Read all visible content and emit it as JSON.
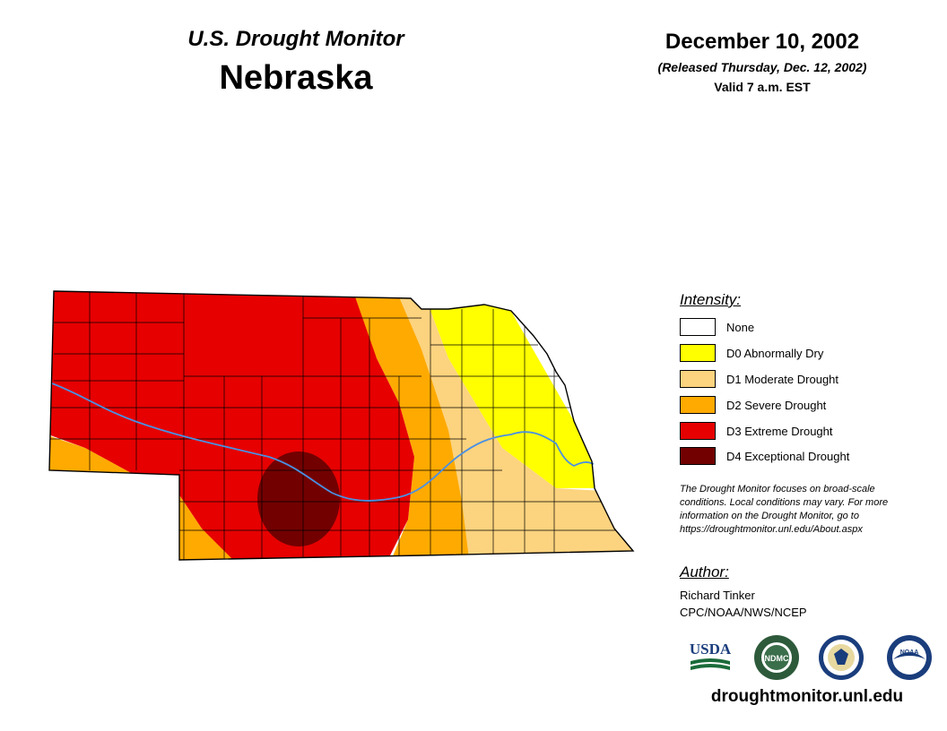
{
  "header": {
    "subtitle": "U.S. Drought Monitor",
    "state": "Nebraska",
    "date": "December 10, 2002",
    "released": "(Released Thursday, Dec. 12, 2002)",
    "valid": "Valid 7 a.m. EST"
  },
  "legend": {
    "title": "Intensity:",
    "items": [
      {
        "label": "None",
        "color": "#ffffff"
      },
      {
        "label": "D0 Abnormally Dry",
        "color": "#ffff00"
      },
      {
        "label": "D1 Moderate Drought",
        "color": "#fcd37f"
      },
      {
        "label": "D2 Severe Drought",
        "color": "#ffaa00"
      },
      {
        "label": "D3 Extreme Drought",
        "color": "#e60000"
      },
      {
        "label": "D4 Exceptional Drought",
        "color": "#730000"
      }
    ]
  },
  "note": {
    "line1": "The Drought Monitor focuses on broad-scale",
    "line2": "conditions. Local conditions may vary. For more",
    "line3": "information on the Drought Monitor, go to",
    "line4": "https://droughtmonitor.unl.edu/About.aspx"
  },
  "author": {
    "title": "Author:",
    "name": "Richard Tinker",
    "org": "CPC/NOAA/NWS/NCEP"
  },
  "logos": {
    "usda": "USDA",
    "ndmc": "NDMC",
    "noaa": "NOAA"
  },
  "website": "droughtmonitor.unl.edu",
  "colors": {
    "river": "#4a90e2",
    "county_line": "#000000"
  }
}
